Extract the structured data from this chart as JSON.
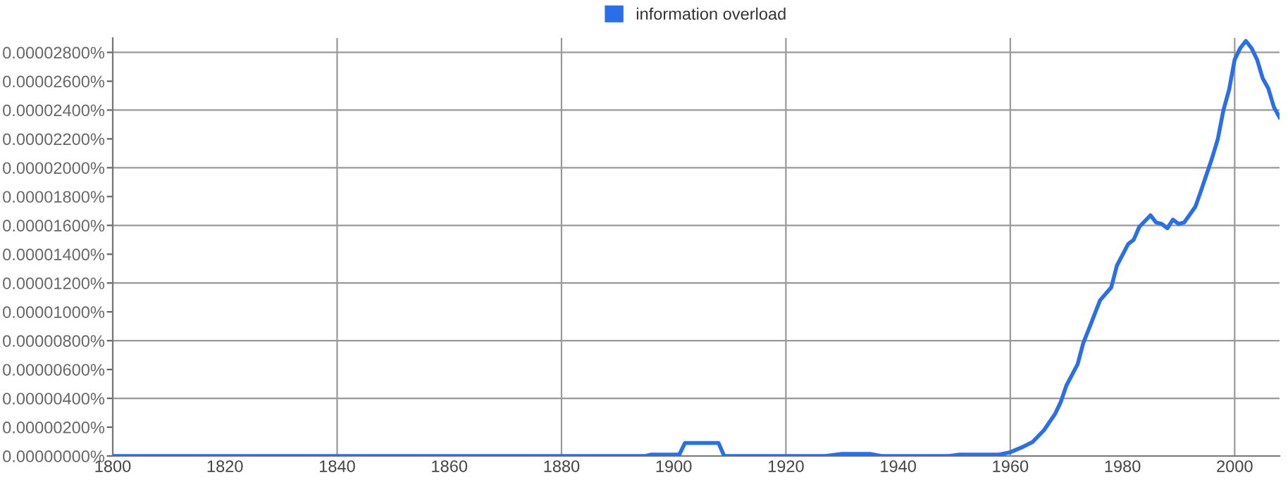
{
  "chart_data": {
    "type": "line",
    "legend": "top",
    "xlim": [
      1800,
      2008
    ],
    "xticks": [
      1800,
      1820,
      1840,
      1860,
      1880,
      1900,
      1920,
      1940,
      1960,
      1980,
      2000
    ],
    "ylim": [
      0,
      2.9e-05
    ],
    "yticks": [
      {
        "value": 0,
        "label": "0.00000000%"
      },
      {
        "value": 2e-06,
        "label": "0.00000200%"
      },
      {
        "value": 4e-06,
        "label": "0.00000400%"
      },
      {
        "value": 6e-06,
        "label": "0.00000600%"
      },
      {
        "value": 8e-06,
        "label": "0.00000800%"
      },
      {
        "value": 1e-05,
        "label": "0.00001000%"
      },
      {
        "value": 1.2e-05,
        "label": "0.00001200%"
      },
      {
        "value": 1.4e-05,
        "label": "0.00001400%"
      },
      {
        "value": 1.6e-05,
        "label": "0.00001600%"
      },
      {
        "value": 1.8e-05,
        "label": "0.00001800%"
      },
      {
        "value": 2e-05,
        "label": "0.00002000%"
      },
      {
        "value": 2.2e-05,
        "label": "0.00002200%"
      },
      {
        "value": 2.4e-05,
        "label": "0.00002400%"
      },
      {
        "value": 2.6e-05,
        "label": "0.00002600%"
      },
      {
        "value": 2.8e-05,
        "label": "0.00002800%"
      }
    ],
    "grid": true,
    "x": [
      1800,
      1895,
      1896,
      1901,
      1902,
      1908,
      1909,
      1927,
      1930,
      1935,
      1937,
      1949,
      1951,
      1958,
      1960,
      1962,
      1964,
      1966,
      1968,
      1969,
      1970,
      1972,
      1973,
      1974,
      1976,
      1978,
      1979,
      1981,
      1982,
      1983,
      1985,
      1986,
      1987,
      1988,
      1989,
      1990,
      1991,
      1993,
      1994,
      1996,
      1997,
      1998,
      1999,
      2000,
      2001,
      2002,
      2003,
      2004,
      2005,
      2006,
      2007,
      2008
    ],
    "series": [
      {
        "name": "information overload",
        "color": "#2a6ee8",
        "values": [
          0,
          0,
          1e-07,
          1e-07,
          9e-07,
          9e-07,
          0,
          0,
          1.5e-07,
          1.5e-07,
          0,
          0,
          1e-07,
          1e-07,
          2.6e-07,
          5.9e-07,
          9.8e-07,
          1.79e-06,
          2.93e-06,
          3.75e-06,
          4.89e-06,
          6.36e-06,
          7.82e-06,
          8.8e-06,
          1.08e-05,
          1.17e-05,
          1.32e-05,
          1.47e-05,
          1.5e-05,
          1.59e-05,
          1.67e-05,
          1.62e-05,
          1.61e-05,
          1.58e-05,
          1.64e-05,
          1.61e-05,
          1.62e-05,
          1.73e-05,
          1.84e-05,
          2.07e-05,
          2.2e-05,
          2.4e-05,
          2.54e-05,
          2.75e-05,
          2.83e-05,
          2.88e-05,
          2.83e-05,
          2.75e-05,
          2.62e-05,
          2.55e-05,
          2.42e-05,
          2.35e-05
        ]
      }
    ]
  }
}
